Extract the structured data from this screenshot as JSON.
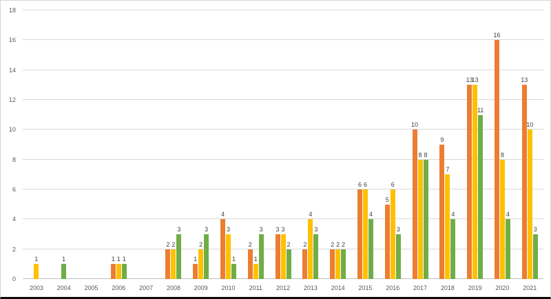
{
  "chart_data": {
    "type": "bar",
    "title": "",
    "xlabel": "",
    "ylabel": "",
    "ylim": [
      0,
      18
    ],
    "ytick_step": 2,
    "grid": true,
    "legend": "none",
    "categories": [
      "2003",
      "2004",
      "2005",
      "2006",
      "2007",
      "2008",
      "2009",
      "2010",
      "2011",
      "2012",
      "2013",
      "2014",
      "2015",
      "2016",
      "2017",
      "2018",
      "2019",
      "2020",
      "2021"
    ],
    "series": [
      {
        "name": "orange",
        "color": "#ED7D31",
        "values": [
          null,
          null,
          null,
          1,
          null,
          2,
          1,
          4,
          2,
          3,
          2,
          2,
          6,
          5,
          10,
          9,
          13,
          16,
          13
        ]
      },
      {
        "name": "gold",
        "color": "#FFC000",
        "values": [
          1,
          null,
          null,
          1,
          null,
          2,
          2,
          3,
          1,
          3,
          4,
          2,
          6,
          6,
          8,
          7,
          13,
          8,
          10
        ]
      },
      {
        "name": "green",
        "color": "#70AD47",
        "values": [
          null,
          1,
          null,
          1,
          null,
          3,
          3,
          1,
          3,
          2,
          3,
          2,
          4,
          3,
          8,
          4,
          11,
          4,
          3
        ]
      }
    ]
  },
  "style": {
    "gridline_color": "#d9d9d9",
    "axis_line_color": "#bfbfbf",
    "label_color": "#404040",
    "tick_color": "#595959",
    "background": "#ffffff"
  }
}
